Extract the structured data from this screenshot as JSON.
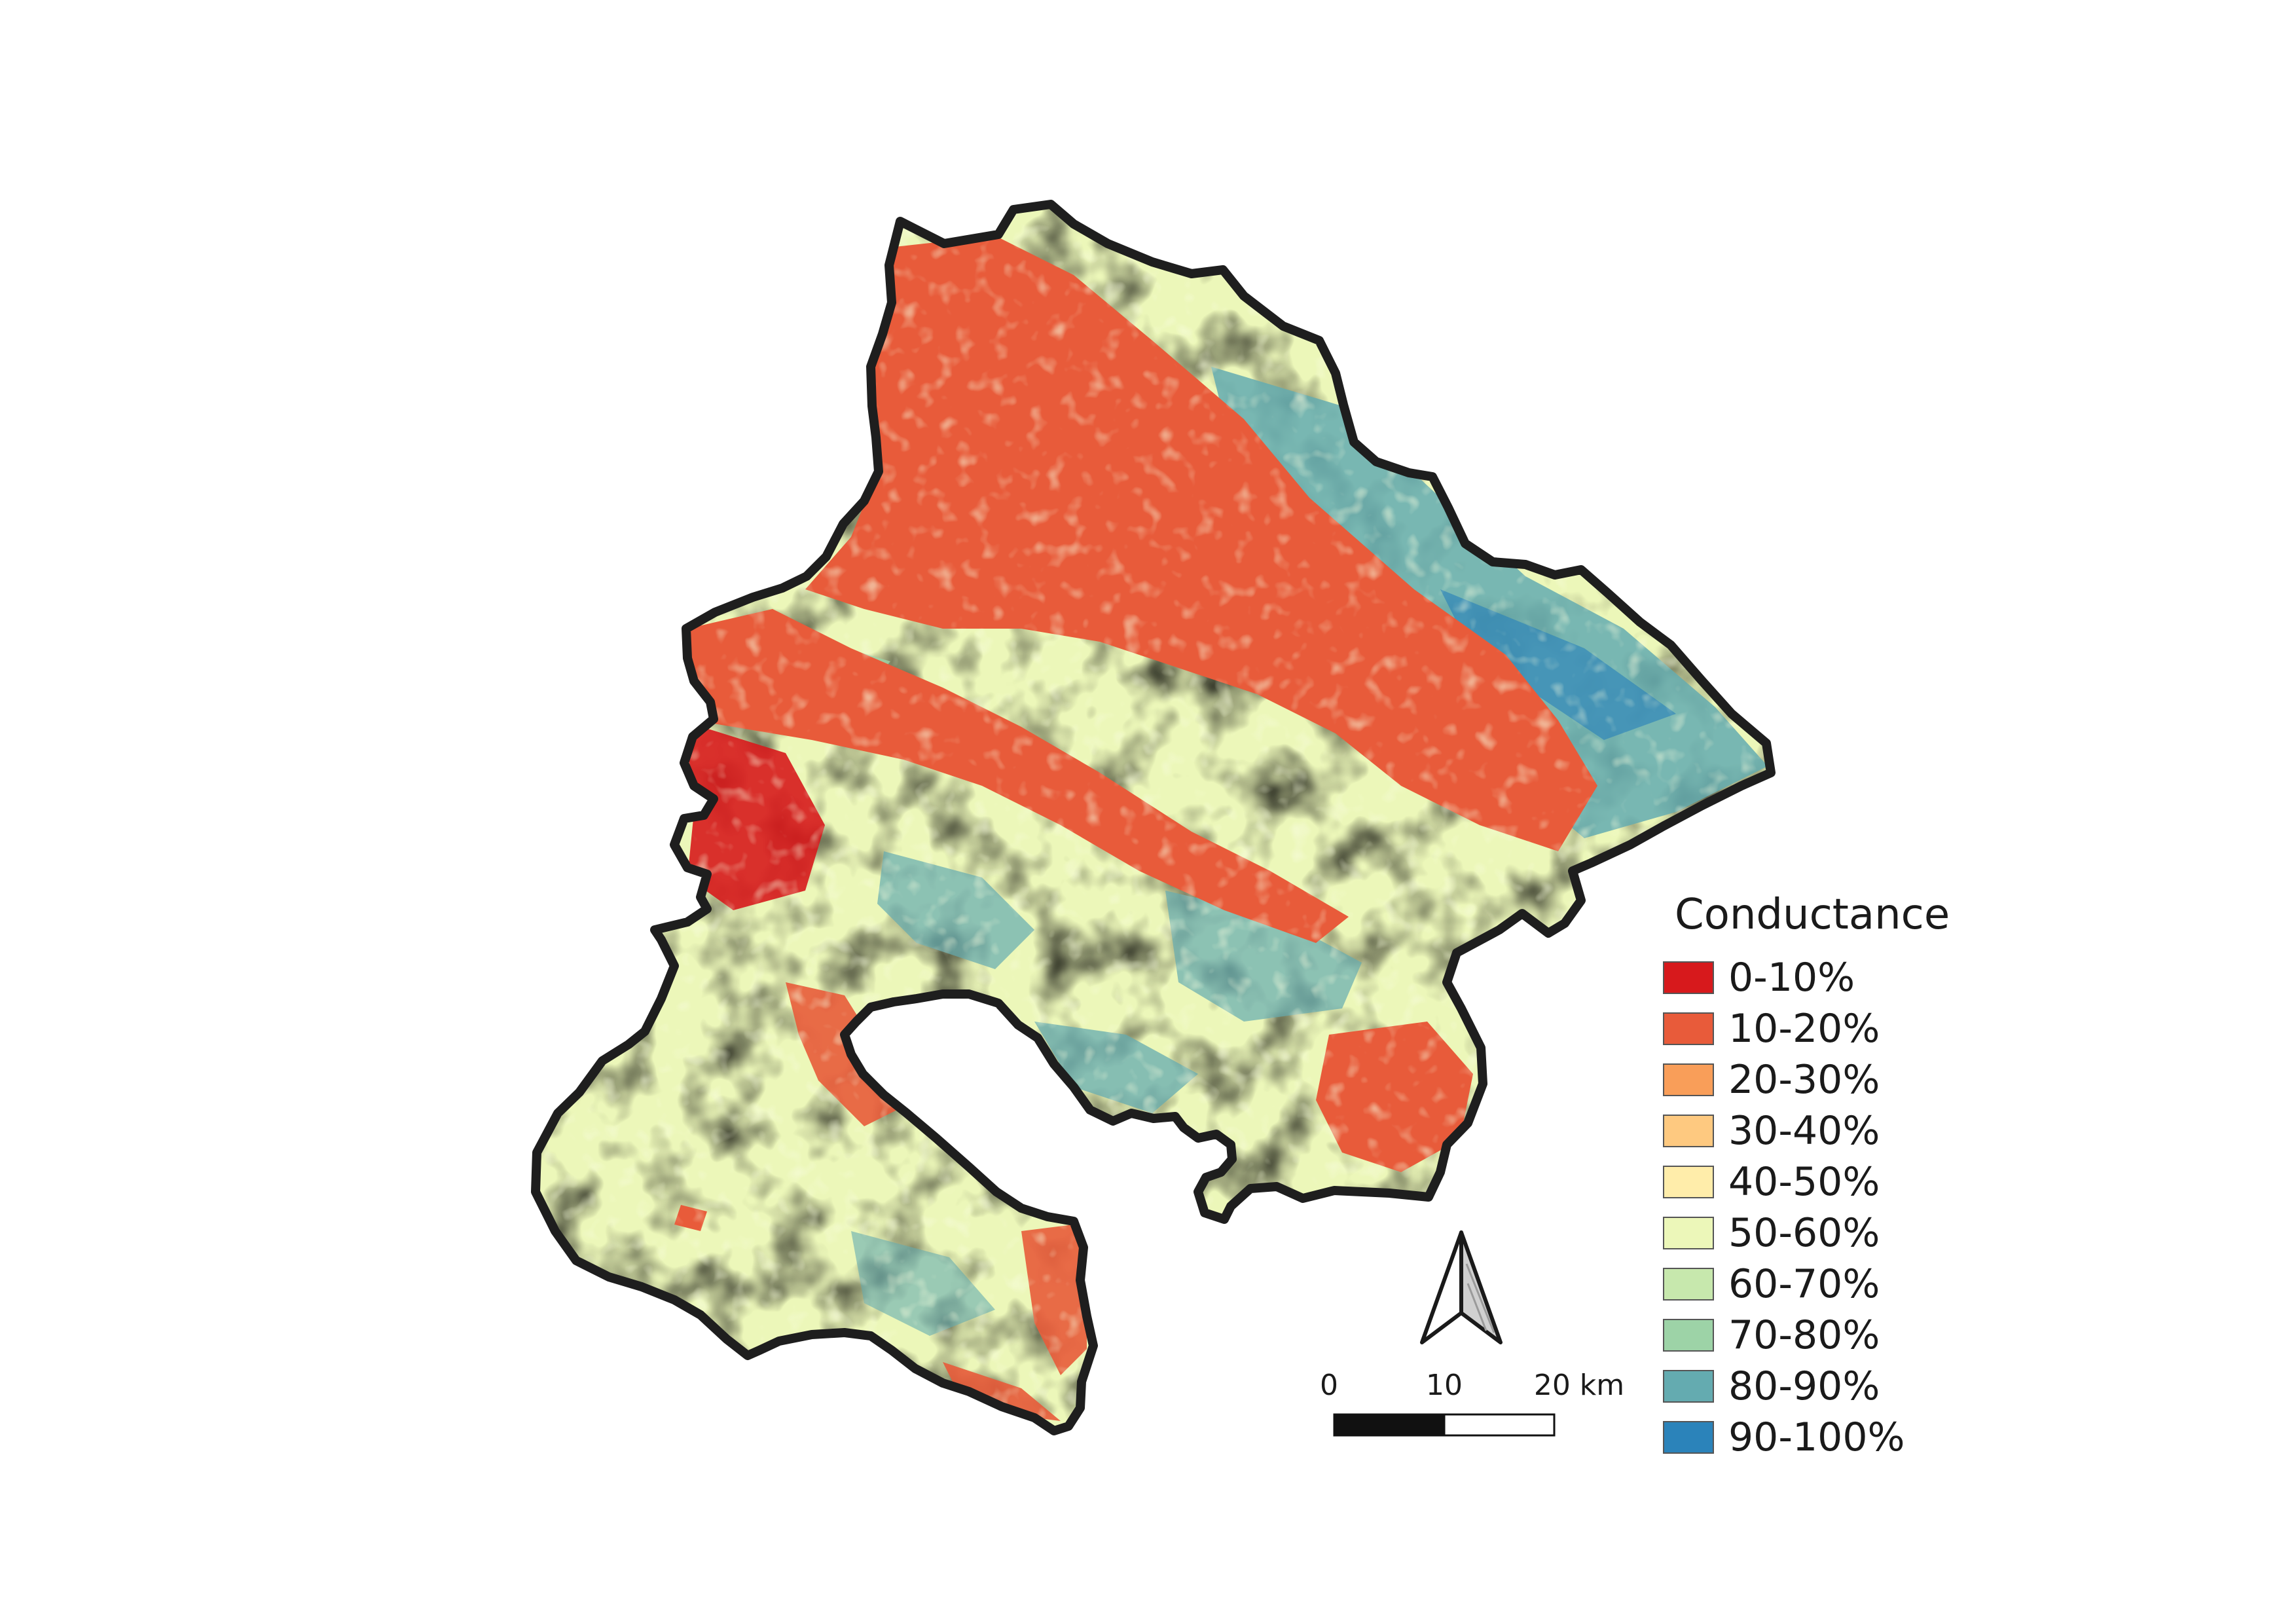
{
  "legend": {
    "title": "Conductance",
    "items": [
      {
        "label": "0-10%",
        "color": "#d7191c"
      },
      {
        "label": "10-20%",
        "color": "#e85b3a"
      },
      {
        "label": "20-30%",
        "color": "#f99e59"
      },
      {
        "label": "30-40%",
        "color": "#fec980"
      },
      {
        "label": "40-50%",
        "color": "#ffedaa"
      },
      {
        "label": "50-60%",
        "color": "#ecf7b9"
      },
      {
        "label": "60-70%",
        "color": "#c7e8ad"
      },
      {
        "label": "70-80%",
        "color": "#9dd3a7"
      },
      {
        "label": "80-90%",
        "color": "#64abb0"
      },
      {
        "label": "90-100%",
        "color": "#2b83ba"
      }
    ]
  },
  "scale_bar": {
    "labels": [
      "0",
      "10",
      "20 km"
    ]
  },
  "north_arrow": {
    "icon": "north-arrow-icon"
  },
  "colors": {
    "boundary": "#1e1e1e",
    "background": "#ffffff"
  }
}
